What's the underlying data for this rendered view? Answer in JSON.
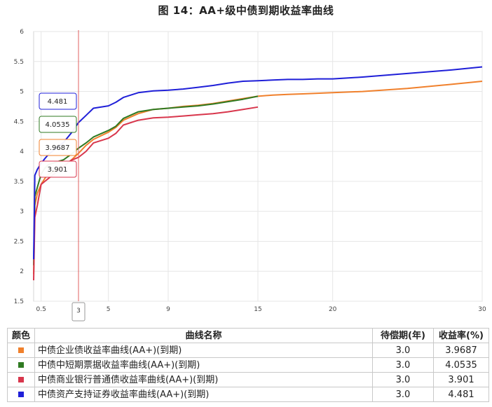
{
  "title": "图  14：AA+级中债到期收益率曲线",
  "colors": {
    "orange": "#f0802c",
    "green": "#2f7a22",
    "red": "#d8364c",
    "blue": "#1f1fd8",
    "cursor": "#e06060"
  },
  "chart_data": {
    "type": "line",
    "xlim": [
      0,
      30
    ],
    "ylim": [
      1.5,
      6
    ],
    "x_ticks": [
      "0.5",
      "3",
      "5",
      "9",
      "15",
      "20",
      "30"
    ],
    "y_ticks": [
      "1.5",
      "2",
      "2.5",
      "3",
      "3.5",
      "4",
      "4.5",
      "5",
      "5.5",
      "6"
    ],
    "grid": true,
    "cursor_x": 3,
    "cursor_label": "3",
    "series": [
      {
        "name": "中债企业债收益率曲线(AA+)(到期)",
        "color": "#f0802c",
        "points": [
          [
            0,
            1.95
          ],
          [
            0.08,
            3.1
          ],
          [
            0.25,
            3.3
          ],
          [
            0.5,
            3.45
          ],
          [
            0.75,
            3.55
          ],
          [
            1,
            3.62
          ],
          [
            1.5,
            3.68
          ],
          [
            2,
            3.75
          ],
          [
            2.5,
            3.85
          ],
          [
            3,
            3.9687
          ],
          [
            3.5,
            4.1
          ],
          [
            4,
            4.2
          ],
          [
            5,
            4.32
          ],
          [
            5.5,
            4.4
          ],
          [
            6,
            4.52
          ],
          [
            7,
            4.63
          ],
          [
            8,
            4.7
          ],
          [
            9,
            4.72
          ],
          [
            10,
            4.75
          ],
          [
            11,
            4.77
          ],
          [
            12,
            4.8
          ],
          [
            13,
            4.84
          ],
          [
            14,
            4.88
          ],
          [
            15,
            4.92
          ],
          [
            16,
            4.94
          ],
          [
            17,
            4.95
          ],
          [
            18,
            4.96
          ],
          [
            19,
            4.97
          ],
          [
            20,
            4.98
          ],
          [
            22,
            5.0
          ],
          [
            25,
            5.05
          ],
          [
            28,
            5.12
          ],
          [
            30,
            5.17
          ]
        ]
      },
      {
        "name": "中债中短期票据收益率曲线(AA+)(到期)",
        "color": "#2f7a22",
        "points": [
          [
            0,
            2.1
          ],
          [
            0.08,
            3.25
          ],
          [
            0.25,
            3.4
          ],
          [
            0.5,
            3.62
          ],
          [
            0.75,
            3.72
          ],
          [
            1,
            3.78
          ],
          [
            1.5,
            3.82
          ],
          [
            2,
            3.86
          ],
          [
            2.5,
            3.95
          ],
          [
            3,
            4.0535
          ],
          [
            3.5,
            4.14
          ],
          [
            4,
            4.24
          ],
          [
            5,
            4.35
          ],
          [
            5.5,
            4.42
          ],
          [
            6,
            4.55
          ],
          [
            7,
            4.66
          ],
          [
            8,
            4.7
          ],
          [
            9,
            4.72
          ],
          [
            10,
            4.74
          ],
          [
            11,
            4.76
          ],
          [
            12,
            4.79
          ],
          [
            13,
            4.83
          ],
          [
            14,
            4.87
          ],
          [
            15,
            4.92
          ]
        ]
      },
      {
        "name": "中债商业银行普通债收益率曲线(AA+)(到期)",
        "color": "#d8364c",
        "points": [
          [
            0,
            1.85
          ],
          [
            0.08,
            2.9
          ],
          [
            0.25,
            3.1
          ],
          [
            0.5,
            3.45
          ],
          [
            0.75,
            3.5
          ],
          [
            1,
            3.55
          ],
          [
            1.5,
            3.65
          ],
          [
            2,
            3.75
          ],
          [
            2.5,
            3.85
          ],
          [
            3,
            3.901
          ],
          [
            3.5,
            4.0
          ],
          [
            4,
            4.14
          ],
          [
            5,
            4.22
          ],
          [
            5.5,
            4.3
          ],
          [
            6,
            4.44
          ],
          [
            7,
            4.52
          ],
          [
            8,
            4.56
          ],
          [
            9,
            4.57
          ],
          [
            10,
            4.59
          ],
          [
            11,
            4.61
          ],
          [
            12,
            4.63
          ],
          [
            13,
            4.66
          ],
          [
            14,
            4.7
          ],
          [
            15,
            4.74
          ]
        ]
      },
      {
        "name": "中债资产支持证券收益率曲线(AA+)(到期)",
        "color": "#1f1fd8",
        "points": [
          [
            0,
            2.2
          ],
          [
            0.08,
            3.6
          ],
          [
            0.25,
            3.7
          ],
          [
            0.5,
            3.8
          ],
          [
            0.75,
            3.88
          ],
          [
            1,
            3.95
          ],
          [
            1.5,
            4.05
          ],
          [
            2,
            4.15
          ],
          [
            2.5,
            4.3
          ],
          [
            3,
            4.481
          ],
          [
            3.5,
            4.6
          ],
          [
            4,
            4.72
          ],
          [
            5,
            4.76
          ],
          [
            5.5,
            4.82
          ],
          [
            6,
            4.9
          ],
          [
            7,
            4.98
          ],
          [
            8,
            5.01
          ],
          [
            9,
            5.02
          ],
          [
            10,
            5.04
          ],
          [
            11,
            5.07
          ],
          [
            12,
            5.1
          ],
          [
            13,
            5.14
          ],
          [
            14,
            5.17
          ],
          [
            15,
            5.18
          ],
          [
            16,
            5.19
          ],
          [
            17,
            5.2
          ],
          [
            18,
            5.2
          ],
          [
            19,
            5.21
          ],
          [
            20,
            5.21
          ],
          [
            22,
            5.24
          ],
          [
            25,
            5.3
          ],
          [
            28,
            5.36
          ],
          [
            30,
            5.41
          ]
        ]
      }
    ],
    "tooltips": [
      {
        "label": "4.481",
        "color": "#1f1fd8"
      },
      {
        "label": "4.0535",
        "color": "#2f7a22"
      },
      {
        "label": "3.9687",
        "color": "#f0802c"
      },
      {
        "label": "3.901",
        "color": "#d8364c"
      }
    ]
  },
  "table": {
    "headers": [
      "颜色",
      "曲线名称",
      "待偿期(年)",
      "收益率(%)"
    ],
    "rows": [
      {
        "color": "#f0802c",
        "name": "中债企业债收益率曲线(AA+)(到期)",
        "term": "3.0",
        "yield": "3.9687"
      },
      {
        "color": "#2f7a22",
        "name": "中债中短期票据收益率曲线(AA+)(到期)",
        "term": "3.0",
        "yield": "4.0535"
      },
      {
        "color": "#d8364c",
        "name": "中债商业银行普通债收益率曲线(AA+)(到期)",
        "term": "3.0",
        "yield": "3.901"
      },
      {
        "color": "#1f1fd8",
        "name": "中债资产支持证券收益率曲线(AA+)(到期)",
        "term": "3.0",
        "yield": "4.481"
      }
    ]
  }
}
